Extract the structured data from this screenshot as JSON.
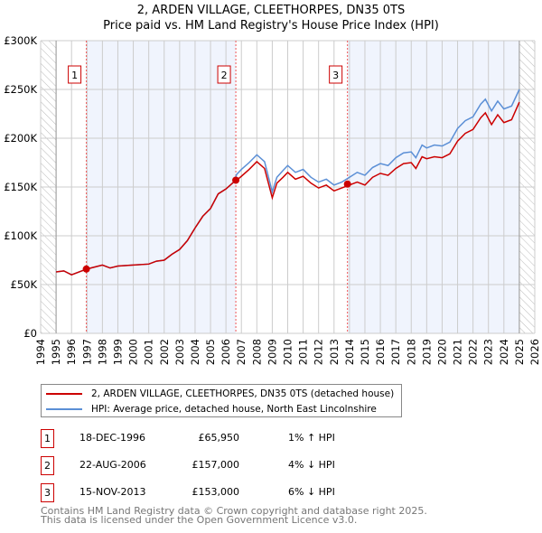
{
  "header": {
    "title": "2, ARDEN VILLAGE, CLEETHORPES, DN35 0TS",
    "subtitle": "Price paid vs. HM Land Registry's House Price Index (HPI)"
  },
  "chart_data": {
    "type": "line",
    "title": "2, ARDEN VILLAGE, CLEETHORPES, DN35 0TS",
    "subtitle": "Price paid vs. HM Land Registry's House Price Index (HPI)",
    "xlabel": "",
    "ylabel": "",
    "xlim": [
      1994,
      2026
    ],
    "ylim": [
      0,
      300000
    ],
    "x_ticks": [
      "1994",
      "1995",
      "1996",
      "1997",
      "1998",
      "1999",
      "2000",
      "2001",
      "2002",
      "2003",
      "2004",
      "2005",
      "2006",
      "2007",
      "2008",
      "2009",
      "2010",
      "2011",
      "2012",
      "2013",
      "2014",
      "2015",
      "2016",
      "2017",
      "2018",
      "2019",
      "2020",
      "2021",
      "2022",
      "2023",
      "2024",
      "2025",
      "2026"
    ],
    "y_ticks": [
      {
        "v": 0,
        "label": "£0"
      },
      {
        "v": 50000,
        "label": "£50K"
      },
      {
        "v": 100000,
        "label": "£100K"
      },
      {
        "v": 150000,
        "label": "£150K"
      },
      {
        "v": 200000,
        "label": "£200K"
      },
      {
        "v": 250000,
        "label": "£250K"
      },
      {
        "v": 300000,
        "label": "£300K"
      }
    ],
    "grid": true,
    "x": [
      1995,
      1995.5,
      1996,
      1996.5,
      1997,
      1998,
      1998.5,
      1999,
      2000,
      2001,
      2001.5,
      2002,
      2002.5,
      2003,
      2003.5,
      2004,
      2004.5,
      2005,
      2005.5,
      2006,
      2006.5,
      2006.7,
      2007,
      2007.5,
      2008,
      2008.5,
      2009,
      2009.3,
      2009.7,
      2010,
      2010.5,
      2011,
      2011.5,
      2012,
      2012.5,
      2013,
      2013.5,
      2014,
      2014.5,
      2015,
      2015.5,
      2016,
      2016.5,
      2017,
      2017.5,
      2018,
      2018.3,
      2018.7,
      2019,
      2019.5,
      2020,
      2020.5,
      2021,
      2021.5,
      2022,
      2022.5,
      2022.8,
      2023.2,
      2023.6,
      2024,
      2024.5,
      2025
    ],
    "series": [
      {
        "name": "2, ARDEN VILLAGE, CLEETHORPES, DN35 0TS (detached house)",
        "color": "#cc0000",
        "values": [
          63000,
          64000,
          60000,
          63000,
          66000,
          70000,
          67000,
          69000,
          70000,
          71000,
          74000,
          75000,
          81000,
          86000,
          95000,
          108000,
          120000,
          128000,
          143000,
          148000,
          155000,
          157000,
          161000,
          168000,
          176000,
          169000,
          139000,
          154000,
          160000,
          165000,
          158000,
          161000,
          154000,
          149000,
          152000,
          146000,
          149000,
          152000,
          155000,
          152000,
          160000,
          164000,
          162000,
          169000,
          174000,
          175000,
          169000,
          181000,
          179000,
          181000,
          180000,
          184000,
          197000,
          205000,
          209000,
          221000,
          226000,
          214000,
          224000,
          216000,
          219000,
          237000
        ]
      },
      {
        "name": "HPI: Average price, detached house, North East Lincolnshire",
        "color": "#5b8fd6",
        "values": [
          63000,
          64000,
          60000,
          63000,
          66000,
          70000,
          67000,
          69000,
          70000,
          71000,
          74000,
          75000,
          81000,
          86000,
          95000,
          108000,
          120000,
          128000,
          143000,
          148000,
          155000,
          163000,
          168000,
          175000,
          183000,
          176000,
          145000,
          160000,
          167000,
          172000,
          165000,
          168000,
          160000,
          155000,
          158000,
          152000,
          155000,
          160000,
          165000,
          162000,
          170000,
          174000,
          172000,
          180000,
          185000,
          186000,
          180000,
          193000,
          190000,
          193000,
          192000,
          196000,
          210000,
          218000,
          222000,
          235000,
          240000,
          228000,
          238000,
          230000,
          233000,
          250000
        ]
      }
    ],
    "sales": [
      {
        "label": "1",
        "date": "18-DEC-1996",
        "x": 1996.96,
        "price": 65950,
        "price_label": "£65,950",
        "hpi": "1% ↑ HPI"
      },
      {
        "label": "2",
        "date": "22-AUG-2006",
        "x": 2006.64,
        "price": 157000,
        "price_label": "£157,000",
        "hpi": "4% ↓ HPI"
      },
      {
        "label": "3",
        "date": "15-NOV-2013",
        "x": 2013.87,
        "price": 153000,
        "price_label": "£153,000",
        "hpi": "6% ↓ HPI"
      }
    ],
    "legend_position": "below"
  },
  "footer": {
    "line1": "Contains HM Land Registry data © Crown copyright and database right 2025.",
    "line2": "This data is licensed under the Open Government Licence v3.0."
  }
}
